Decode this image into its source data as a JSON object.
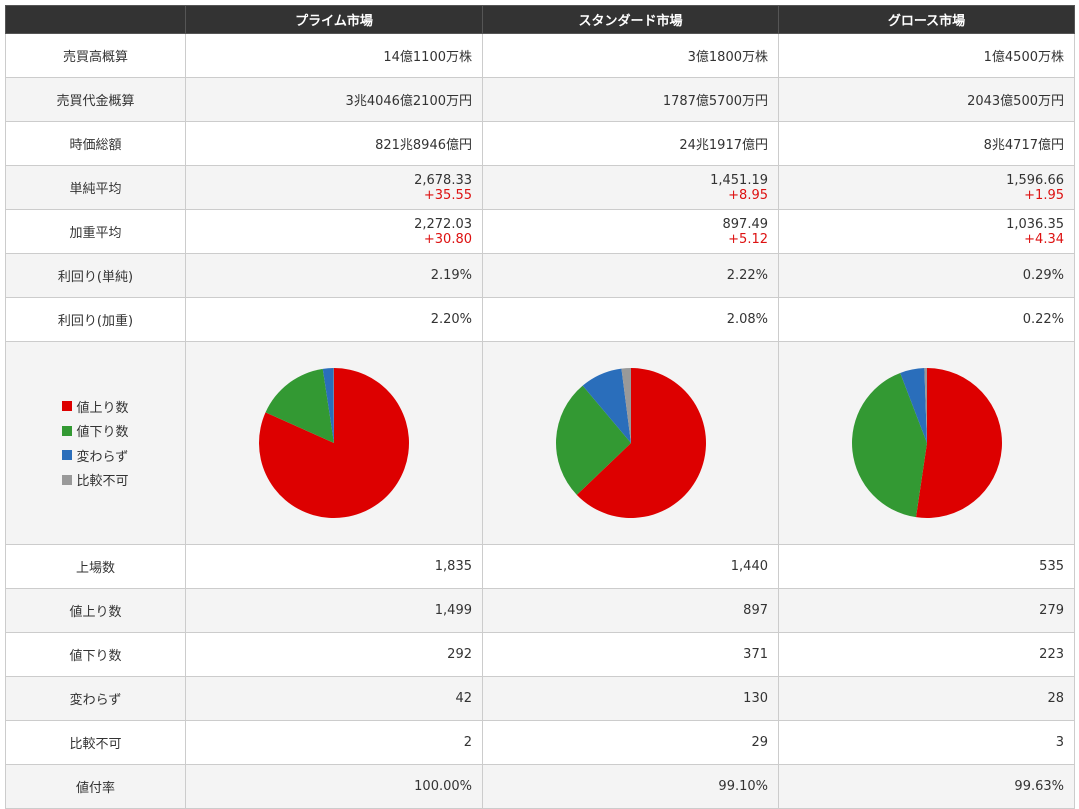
{
  "header": {
    "corner": "",
    "columns": [
      "プライム市場",
      "スタンダード市場",
      "グロース市場"
    ]
  },
  "rows_top": [
    {
      "label": "売買高概算",
      "values": [
        "14億1100万株",
        "3億1800万株",
        "1億4500万株"
      ]
    },
    {
      "label": "売買代金概算",
      "values": [
        "3兆4046億2100万円",
        "1787億5700万円",
        "2043億500万円"
      ]
    },
    {
      "label": "時価総額",
      "values": [
        "821兆8946億円",
        "24兆1917億円",
        "8兆4717億円"
      ]
    }
  ],
  "rows_avg": [
    {
      "label": "単純平均",
      "values": [
        "2,678.33",
        "1,451.19",
        "1,596.66"
      ],
      "changes": [
        "+35.55",
        "+8.95",
        "+1.95"
      ]
    },
    {
      "label": "加重平均",
      "values": [
        "2,272.03",
        "897.49",
        "1,036.35"
      ],
      "changes": [
        "+30.80",
        "+5.12",
        "+4.34"
      ]
    }
  ],
  "rows_yield": [
    {
      "label": "利回り(単純)",
      "values": [
        "2.19%",
        "2.22%",
        "0.29%"
      ]
    },
    {
      "label": "利回り(加重)",
      "values": [
        "2.20%",
        "2.08%",
        "0.22%"
      ]
    }
  ],
  "legend": {
    "items": [
      {
        "label": "値上り数",
        "color": "#dd0000"
      },
      {
        "label": "値下り数",
        "color": "#339933"
      },
      {
        "label": "変わらず",
        "color": "#2a6ebb"
      },
      {
        "label": "比較不可",
        "color": "#999999"
      }
    ]
  },
  "chart_data": [
    {
      "type": "pie",
      "categories": [
        "値上り数",
        "値下り数",
        "変わらず",
        "比較不可"
      ],
      "values": [
        1499,
        292,
        42,
        2
      ],
      "colors": [
        "#dd0000",
        "#339933",
        "#2a6ebb",
        "#999999"
      ]
    },
    {
      "type": "pie",
      "categories": [
        "値上り数",
        "値下り数",
        "変わらず",
        "比較不可"
      ],
      "values": [
        897,
        371,
        130,
        29
      ],
      "colors": [
        "#dd0000",
        "#339933",
        "#2a6ebb",
        "#999999"
      ]
    },
    {
      "type": "pie",
      "categories": [
        "値上り数",
        "値下り数",
        "変わらず",
        "比較不可"
      ],
      "values": [
        279,
        223,
        28,
        3
      ],
      "colors": [
        "#dd0000",
        "#339933",
        "#2a6ebb",
        "#999999"
      ]
    }
  ],
  "rows_bottom": [
    {
      "label": "上場数",
      "values": [
        "1,835",
        "1,440",
        "535"
      ]
    },
    {
      "label": "値上り数",
      "values": [
        "1,499",
        "897",
        "279"
      ]
    },
    {
      "label": "値下り数",
      "values": [
        "292",
        "371",
        "223"
      ]
    },
    {
      "label": "変わらず",
      "values": [
        "42",
        "130",
        "28"
      ]
    },
    {
      "label": "比較不可",
      "values": [
        "2",
        "29",
        "3"
      ]
    },
    {
      "label": "値付率",
      "values": [
        "100.00%",
        "99.10%",
        "99.63%"
      ]
    }
  ]
}
